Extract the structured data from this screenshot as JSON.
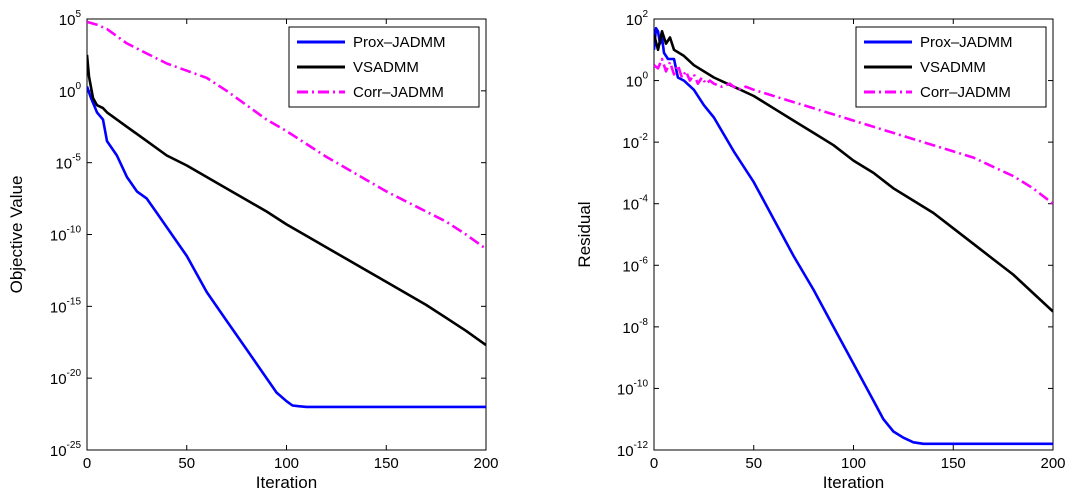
{
  "chart_data": [
    {
      "type": "line",
      "xlabel": "Iteration",
      "ylabel": "Objective Value",
      "xlim": [
        0,
        200
      ],
      "ylim_exp": [
        -25,
        5
      ],
      "y_scale": "log",
      "x_ticks": [
        "0",
        "50",
        "100",
        "150",
        "200"
      ],
      "y_tick_base": "10",
      "y_tick_exps": [
        "5",
        "0",
        "-5",
        "-10",
        "-15",
        "-20",
        "-25"
      ],
      "grid": false,
      "legend_position": "top-right",
      "series": [
        {
          "name": "Prox–JADMM",
          "color": "#0000ff",
          "style": "solid",
          "x": [
            0,
            2,
            5,
            8,
            10,
            15,
            20,
            25,
            30,
            35,
            40,
            50,
            60,
            70,
            80,
            90,
            95,
            100,
            103,
            106,
            110,
            150,
            200
          ],
          "log10_y": [
            0.3,
            -0.5,
            -1.5,
            -2.0,
            -3.5,
            -4.5,
            -6.0,
            -7.0,
            -7.5,
            -8.5,
            -9.5,
            -11.5,
            -14.0,
            -16.0,
            -18.0,
            -20.0,
            -21.0,
            -21.6,
            -21.9,
            -21.95,
            -22.0,
            -22.0,
            -22.0
          ]
        },
        {
          "name": "VSADMM",
          "color": "#000000",
          "style": "solid",
          "x": [
            0,
            1,
            3,
            5,
            8,
            10,
            15,
            20,
            25,
            30,
            40,
            50,
            60,
            70,
            80,
            90,
            100,
            110,
            120,
            130,
            140,
            150,
            160,
            170,
            180,
            190,
            200
          ],
          "log10_y": [
            2.5,
            1.0,
            -0.5,
            -1.0,
            -1.2,
            -1.5,
            -2.0,
            -2.5,
            -3.0,
            -3.5,
            -4.5,
            -5.2,
            -6.0,
            -6.8,
            -7.6,
            -8.4,
            -9.3,
            -10.1,
            -10.9,
            -11.7,
            -12.5,
            -13.3,
            -14.1,
            -14.9,
            -15.8,
            -16.7,
            -17.7
          ]
        },
        {
          "name": "Corr–JADMM",
          "color": "#ff00ff",
          "style": "dashdot",
          "x": [
            0,
            5,
            10,
            15,
            20,
            30,
            40,
            50,
            60,
            70,
            80,
            90,
            100,
            110,
            120,
            130,
            140,
            150,
            160,
            170,
            180,
            190,
            200
          ],
          "log10_y": [
            4.8,
            4.6,
            4.3,
            3.8,
            3.3,
            2.6,
            1.9,
            1.4,
            0.9,
            0.0,
            -1.0,
            -2.0,
            -2.8,
            -3.7,
            -4.6,
            -5.4,
            -6.2,
            -7.0,
            -7.7,
            -8.4,
            -9.1,
            -10.0,
            -11.0
          ]
        }
      ]
    },
    {
      "type": "line",
      "xlabel": "Iteration",
      "ylabel": "Residual",
      "xlim": [
        0,
        200
      ],
      "ylim_exp": [
        -12,
        2
      ],
      "y_scale": "log",
      "x_ticks": [
        "0",
        "50",
        "100",
        "150",
        "200"
      ],
      "y_tick_base": "10",
      "y_tick_exps": [
        "2",
        "0",
        "-2",
        "-4",
        "-6",
        "-8",
        "-10",
        "-12"
      ],
      "grid": false,
      "legend_position": "top-right",
      "series": [
        {
          "name": "Prox–JADMM",
          "color": "#0000ff",
          "style": "solid",
          "x": [
            0,
            1,
            2,
            3,
            4,
            5,
            7,
            10,
            12,
            15,
            20,
            25,
            30,
            40,
            50,
            60,
            70,
            80,
            90,
            100,
            110,
            115,
            120,
            125,
            130,
            135,
            140,
            150,
            200
          ],
          "log10_y": [
            1.0,
            1.7,
            1.6,
            1.2,
            1.4,
            0.9,
            0.7,
            0.7,
            0.1,
            0.0,
            -0.3,
            -0.8,
            -1.2,
            -2.3,
            -3.3,
            -4.5,
            -5.7,
            -6.8,
            -8.0,
            -9.2,
            -10.4,
            -11.0,
            -11.4,
            -11.6,
            -11.75,
            -11.8,
            -11.8,
            -11.8,
            -11.8
          ]
        },
        {
          "name": "VSADMM",
          "color": "#000000",
          "style": "solid",
          "x": [
            0,
            2,
            4,
            6,
            8,
            10,
            15,
            20,
            30,
            40,
            50,
            60,
            70,
            80,
            90,
            100,
            110,
            120,
            130,
            140,
            150,
            160,
            170,
            180,
            190,
            200
          ],
          "log10_y": [
            1.5,
            1.0,
            1.6,
            1.2,
            1.4,
            1.0,
            0.8,
            0.5,
            0.1,
            -0.2,
            -0.5,
            -0.9,
            -1.3,
            -1.7,
            -2.1,
            -2.6,
            -3.0,
            -3.5,
            -3.9,
            -4.3,
            -4.8,
            -5.3,
            -5.8,
            -6.3,
            -6.9,
            -7.5
          ]
        },
        {
          "name": "Corr–JADMM",
          "color": "#ff00ff",
          "style": "dashdot",
          "x": [
            0,
            2,
            4,
            6,
            8,
            10,
            12,
            14,
            16,
            18,
            20,
            22,
            24,
            26,
            28,
            30,
            34,
            38,
            42,
            46,
            50,
            60,
            70,
            80,
            90,
            100,
            110,
            120,
            130,
            140,
            150,
            160,
            170,
            180,
            190,
            200
          ],
          "log10_y": [
            0.5,
            0.4,
            0.7,
            0.3,
            0.6,
            0.2,
            0.5,
            0.1,
            0.3,
            0.0,
            0.2,
            -0.1,
            0.1,
            -0.1,
            0.0,
            -0.1,
            -0.2,
            -0.1,
            -0.3,
            -0.2,
            -0.3,
            -0.5,
            -0.7,
            -0.9,
            -1.1,
            -1.3,
            -1.5,
            -1.7,
            -1.9,
            -2.1,
            -2.3,
            -2.5,
            -2.8,
            -3.1,
            -3.5,
            -4.0
          ]
        }
      ]
    }
  ]
}
